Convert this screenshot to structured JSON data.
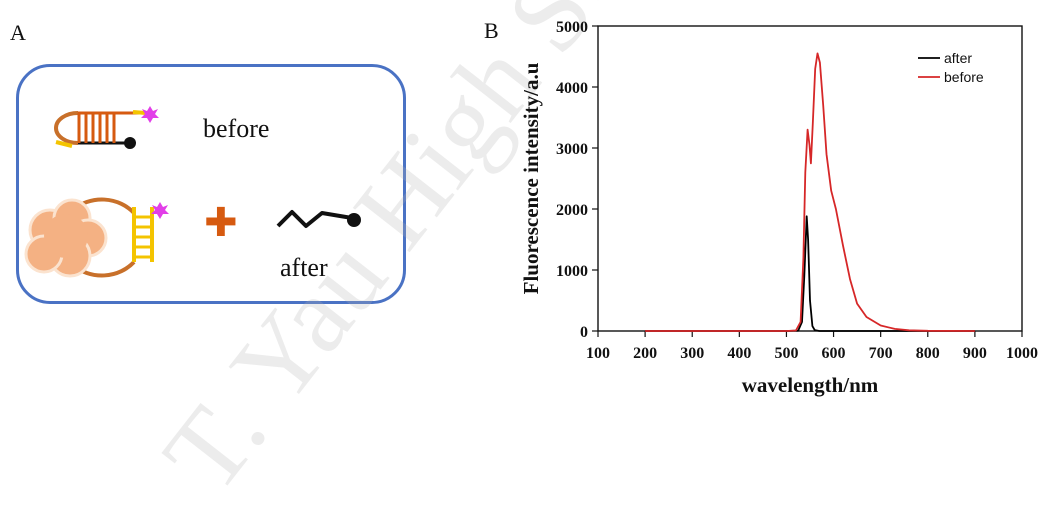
{
  "panels": {
    "a_letter": "A",
    "b_letter": "B"
  },
  "schematic": {
    "before_label": "before",
    "after_label": "after",
    "plus_symbol": "✚",
    "colors": {
      "border": "#4a72c4",
      "hairpin": "#c8702a",
      "stem": "#d65a10",
      "stem_after": "#f4c400",
      "fluorophore": "#e23ee8",
      "quencher": "#111111",
      "target": "#f4b183"
    }
  },
  "watermark_text": "T. Yau High Sc",
  "chart_data": {
    "type": "line",
    "xlabel": "wavelength/nm",
    "ylabel": "Fluorescence intensity/a.u",
    "xlim": [
      100,
      1000
    ],
    "ylim": [
      0,
      5000
    ],
    "x_ticks": [
      100,
      200,
      300,
      400,
      500,
      600,
      700,
      800,
      900,
      1000
    ],
    "y_ticks": [
      0,
      1000,
      2000,
      3000,
      4000,
      5000
    ],
    "legend_position": "top-right",
    "grid": false,
    "series": [
      {
        "name": "after",
        "color": "#000000",
        "points": [
          [
            200,
            0
          ],
          [
            500,
            0
          ],
          [
            525,
            5
          ],
          [
            533,
            150
          ],
          [
            538,
            900
          ],
          [
            543,
            1880
          ],
          [
            546,
            1500
          ],
          [
            550,
            500
          ],
          [
            555,
            80
          ],
          [
            560,
            15
          ],
          [
            570,
            0
          ],
          [
            900,
            0
          ]
        ]
      },
      {
        "name": "before",
        "color": "#d62728",
        "points": [
          [
            200,
            0
          ],
          [
            500,
            0
          ],
          [
            520,
            8
          ],
          [
            530,
            150
          ],
          [
            536,
            1200
          ],
          [
            540,
            2600
          ],
          [
            545,
            3300
          ],
          [
            549,
            3050
          ],
          [
            552,
            2750
          ],
          [
            556,
            3400
          ],
          [
            561,
            4300
          ],
          [
            566,
            4550
          ],
          [
            571,
            4400
          ],
          [
            578,
            3700
          ],
          [
            585,
            2900
          ],
          [
            595,
            2300
          ],
          [
            605,
            2000
          ],
          [
            620,
            1400
          ],
          [
            635,
            850
          ],
          [
            650,
            450
          ],
          [
            670,
            230
          ],
          [
            700,
            90
          ],
          [
            730,
            35
          ],
          [
            760,
            12
          ],
          [
            800,
            4
          ],
          [
            900,
            0
          ]
        ]
      }
    ]
  }
}
